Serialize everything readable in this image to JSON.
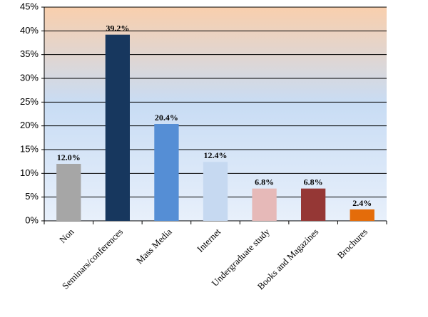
{
  "chart_data": {
    "type": "bar",
    "categories": [
      "Non",
      "Seminars/conferences",
      "Mass Media",
      "Internet",
      "Undergraduate study",
      "Books and Magazines",
      "Brochures"
    ],
    "values": [
      12.0,
      39.2,
      20.4,
      12.4,
      6.8,
      6.8,
      2.4
    ],
    "value_labels": [
      "12.0%",
      "39.2%",
      "20.4%",
      "12.4%",
      "6.8%",
      "6.8%",
      "2.4%"
    ],
    "colors": [
      "#a6a6a6",
      "#17375e",
      "#558ed5",
      "#c6d9f1",
      "#e6b9b8",
      "#953735",
      "#e46c0a"
    ],
    "ylim": [
      0,
      45
    ],
    "yticks": [
      {
        "value": 0,
        "label": "0%"
      },
      {
        "value": 5,
        "label": "5%"
      },
      {
        "value": 10,
        "label": "10%"
      },
      {
        "value": 15,
        "label": "15%"
      },
      {
        "value": 20,
        "label": "20%"
      },
      {
        "value": 25,
        "label": "25%"
      },
      {
        "value": 30,
        "label": "30%"
      },
      {
        "value": 35,
        "label": "35%"
      },
      {
        "value": 40,
        "label": "40%"
      },
      {
        "value": 45,
        "label": "45%"
      }
    ],
    "grid": true
  }
}
